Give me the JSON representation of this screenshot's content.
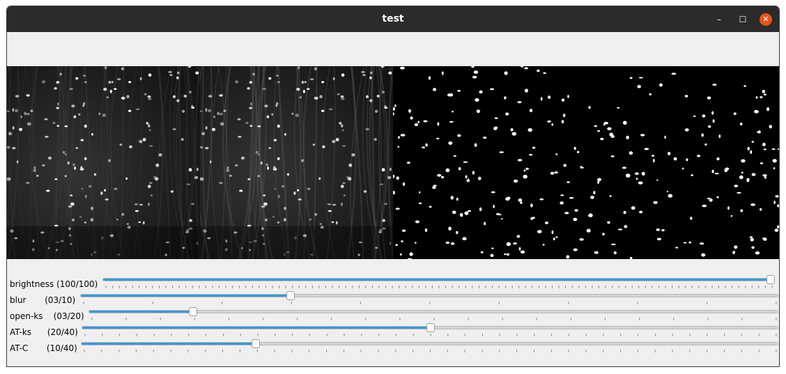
{
  "window": {
    "title": "test",
    "minimize_glyph": "–",
    "maximize_glyph": "☐",
    "close_glyph": "✕"
  },
  "sliders": [
    {
      "id": "brightness",
      "label": "brightness (100/100)",
      "value": 100,
      "max": 100
    },
    {
      "id": "blur",
      "label": "blur       (03/10)",
      "value": 3,
      "max": 10
    },
    {
      "id": "open-ks",
      "label": "open-ks    (03/20)",
      "value": 3,
      "max": 20
    },
    {
      "id": "at-ks",
      "label": "AT-ks      (20/40)",
      "value": 20,
      "max": 40
    },
    {
      "id": "at-c",
      "label": "AT-C       (10/40)",
      "value": 10,
      "max": 40
    }
  ],
  "colors": {
    "slider_fill": "#3a99d8",
    "close_button": "#e2541e",
    "titlebar": "#2b2b2b"
  }
}
